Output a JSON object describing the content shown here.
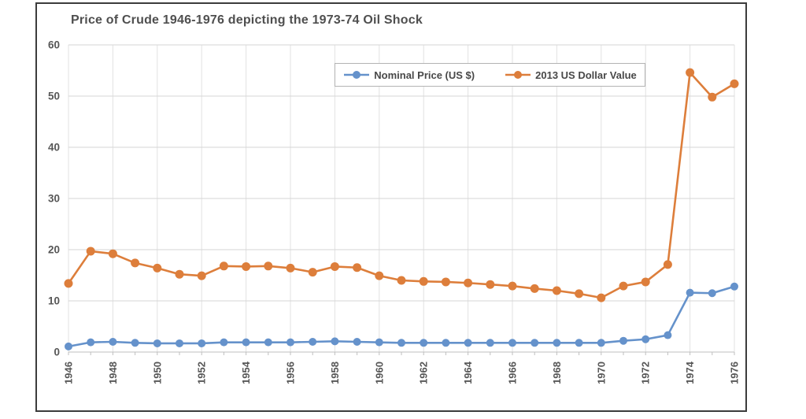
{
  "chart_data": {
    "type": "line",
    "title": "Price of Crude 1946-1976 depicting the 1973-74 Oil Shock",
    "x": [
      1946,
      1947,
      1948,
      1949,
      1950,
      1951,
      1952,
      1953,
      1954,
      1955,
      1956,
      1957,
      1958,
      1959,
      1960,
      1961,
      1962,
      1963,
      1964,
      1965,
      1966,
      1967,
      1968,
      1969,
      1970,
      1971,
      1972,
      1973,
      1974,
      1975,
      1976
    ],
    "series": [
      {
        "name": "Nominal Price (US $)",
        "color": "#6592cb",
        "values": [
          1.1,
          1.9,
          2.0,
          1.8,
          1.7,
          1.7,
          1.7,
          1.9,
          1.9,
          1.9,
          1.9,
          2.0,
          2.1,
          2.0,
          1.9,
          1.8,
          1.8,
          1.8,
          1.8,
          1.8,
          1.8,
          1.8,
          1.8,
          1.8,
          1.8,
          2.2,
          2.5,
          3.3,
          11.6,
          11.5,
          12.8
        ]
      },
      {
        "name": "2013 US Dollar Value",
        "color": "#dd7e3b",
        "values": [
          13.4,
          19.7,
          19.2,
          17.4,
          16.4,
          15.2,
          14.9,
          16.8,
          16.7,
          16.8,
          16.4,
          15.6,
          16.7,
          16.5,
          14.9,
          14.0,
          13.8,
          13.7,
          13.5,
          13.2,
          12.9,
          12.4,
          12.0,
          11.4,
          10.6,
          12.9,
          13.7,
          17.1,
          54.6,
          49.8,
          52.4
        ]
      }
    ],
    "xlabel": "",
    "ylabel": "",
    "ylim": [
      0,
      60
    ],
    "yticks": [
      0,
      10,
      20,
      30,
      40,
      50,
      60
    ],
    "xticks": [
      1946,
      1948,
      1950,
      1952,
      1954,
      1956,
      1958,
      1960,
      1962,
      1964,
      1966,
      1968,
      1970,
      1972,
      1974,
      1976
    ],
    "grid": true,
    "legend_position": "top-center-inside",
    "colors": {
      "frame_border": "#3c3c3c",
      "gridline_h": "#d6d6d6",
      "gridline_v": "#e2e2e2",
      "axis_line": "#bfbfbf",
      "tick_mark": "#bfbfbf",
      "title_text": "#4f4f4f",
      "tick_text": "#575757",
      "background": "#ffffff"
    }
  }
}
